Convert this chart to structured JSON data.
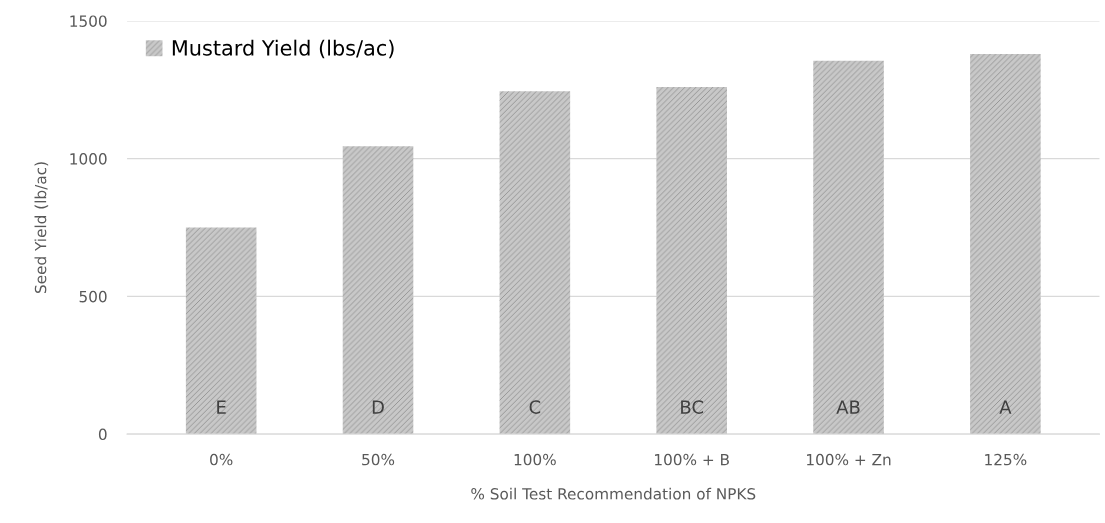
{
  "chart_data": {
    "type": "bar",
    "xlabel": "% Soil Test Recommendation of NPKS",
    "ylabel": "Seed Yield (lb/ac)",
    "categories": [
      "0%",
      "50%",
      "100%",
      "100% + B",
      "100% + Zn",
      "125%"
    ],
    "series": [
      {
        "name": "Mustard Yield (lbs/ac)",
        "color": "#c8c8c8",
        "values": [
          750,
          1045,
          1245,
          1260,
          1355,
          1380
        ],
        "value_labels": [
          "E",
          "D",
          "C",
          "BC",
          "AB",
          "A"
        ]
      }
    ],
    "ylim": [
      0,
      1500
    ],
    "yticks": [
      0,
      500,
      1000,
      1500
    ],
    "grid": "y",
    "legend": "top left"
  }
}
